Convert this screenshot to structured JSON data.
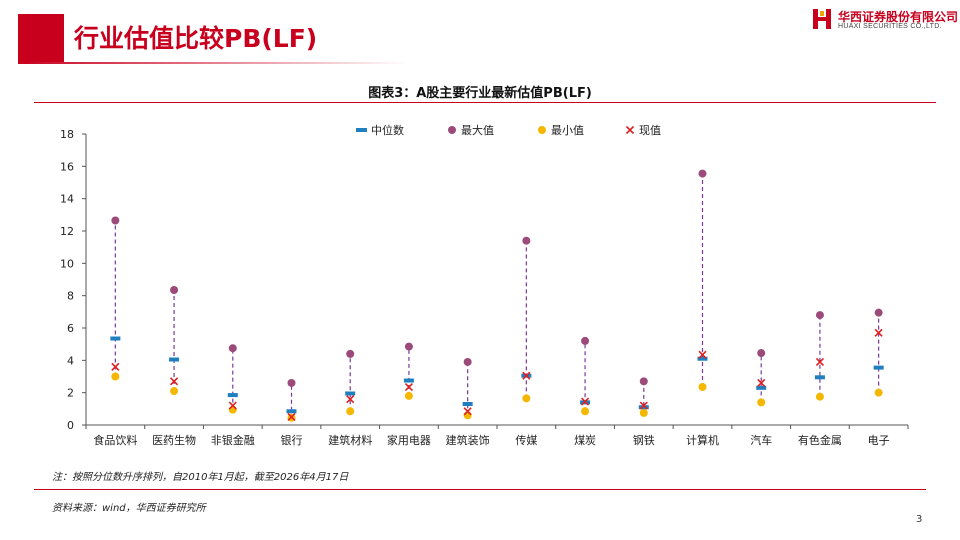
{
  "header": {
    "title": "行业估值比较PB(LF)",
    "company_cn": "华西证券股份有限公司",
    "company_en": "HUAXI SECURITIES CO.,LTD.",
    "brand_color": "#c8001e"
  },
  "figure": {
    "title": "图表3：A股主要行业最新估值PB(LF)"
  },
  "footer": {
    "note": "注：按照分位数升序排列，自2010年1月起，截至2026年4月17日",
    "source": "资料来源：wind，华西证券研究所",
    "page_number": "3"
  },
  "chart_data": {
    "type": "scatter",
    "categories": [
      "食品饮料",
      "医药生物",
      "非银金融",
      "银行",
      "建筑材料",
      "家用电器",
      "建筑装饰",
      "传媒",
      "煤炭",
      "钢铁",
      "计算机",
      "汽车",
      "有色金属",
      "电子"
    ],
    "ylim": [
      0,
      18
    ],
    "yticks": [
      0,
      2,
      4,
      6,
      8,
      10,
      12,
      14,
      16,
      18
    ],
    "legend_position": "top",
    "grid": false,
    "series": [
      {
        "name": "中位数",
        "marker": "dash",
        "color": "#1f7fbf",
        "values": [
          5.35,
          4.05,
          1.85,
          0.85,
          1.95,
          2.75,
          1.3,
          3.05,
          1.4,
          1.1,
          4.1,
          2.3,
          2.95,
          3.55
        ]
      },
      {
        "name": "最大值",
        "marker": "circle",
        "color": "#9b4a7a",
        "values": [
          12.65,
          8.35,
          4.75,
          2.6,
          4.4,
          4.85,
          3.9,
          11.4,
          5.2,
          2.7,
          15.55,
          4.45,
          6.8,
          6.95
        ]
      },
      {
        "name": "最小值",
        "marker": "circle",
        "color": "#f5b800",
        "values": [
          3.0,
          2.1,
          0.95,
          0.45,
          0.85,
          1.8,
          0.6,
          1.65,
          0.85,
          0.75,
          2.35,
          1.4,
          1.75,
          2.0
        ]
      },
      {
        "name": "现值",
        "marker": "x",
        "color": "#e02020",
        "values": [
          3.6,
          2.7,
          1.2,
          0.5,
          1.6,
          2.35,
          0.85,
          3.05,
          1.45,
          1.2,
          4.35,
          2.6,
          3.9,
          5.7
        ]
      }
    ],
    "range_line_color": "#7a3a9a"
  }
}
